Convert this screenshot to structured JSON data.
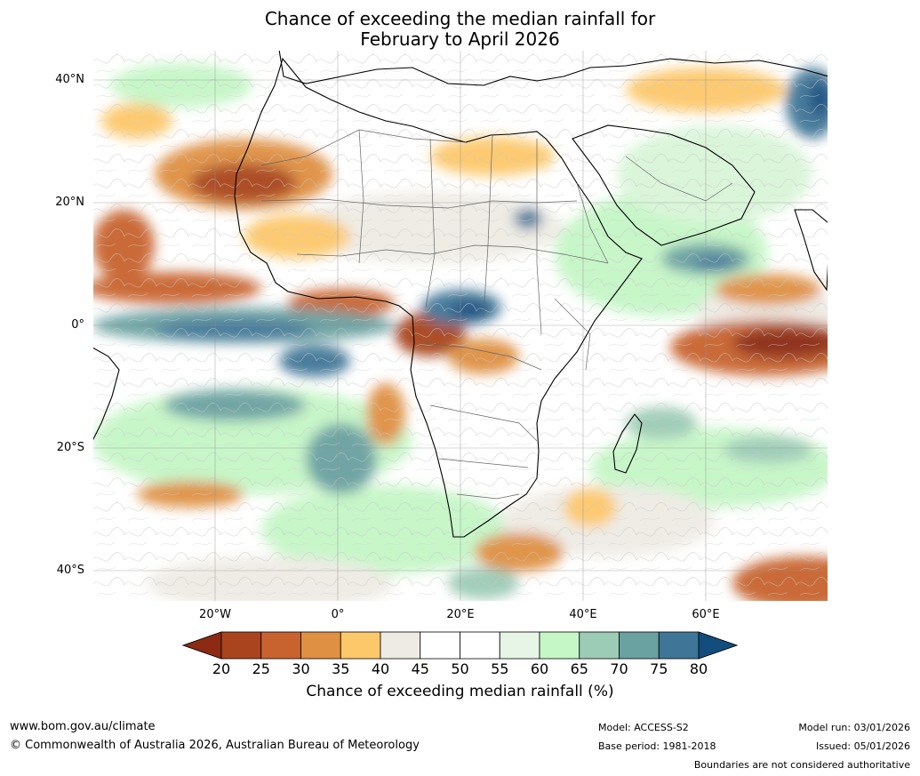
{
  "title": {
    "line1": "Chance of exceeding the median rainfall for",
    "line2": "February to April 2026"
  },
  "map": {
    "latitude_labels": [
      "40°N",
      "20°N",
      "0°",
      "20°S",
      "40°S"
    ],
    "longitude_labels": [
      "20°W",
      "0°",
      "20°E",
      "40°E",
      "60°E"
    ],
    "lat_range": [
      -45,
      45
    ],
    "lon_range": [
      -40,
      80
    ]
  },
  "colorbar": {
    "ticks": [
      "20",
      "25",
      "30",
      "35",
      "40",
      "45",
      "50",
      "55",
      "60",
      "65",
      "70",
      "75",
      "80"
    ],
    "colors": [
      "#8c2a14",
      "#a9441f",
      "#c8632f",
      "#df9042",
      "#fdc86a",
      "#eeebe4",
      "#ffffff",
      "#ffffff",
      "#e6f5e6",
      "#c5f6c6",
      "#9ccbb6",
      "#6aa1a1",
      "#3f7697",
      "#124d7e"
    ],
    "label": "Chance of exceeding median rainfall (%)"
  },
  "footer": {
    "website": "www.bom.gov.au/climate",
    "copyright": "© Commonwealth of Australia 2026, Australian Bureau of Meteorology",
    "model": "Model: ACCESS-S2",
    "base_period": "Base period: 1981-2018",
    "model_run": "Model run: 03/01/2026",
    "issued": "Issued: 05/01/2026",
    "disclaimer": "Boundaries are not considered authoritative"
  }
}
